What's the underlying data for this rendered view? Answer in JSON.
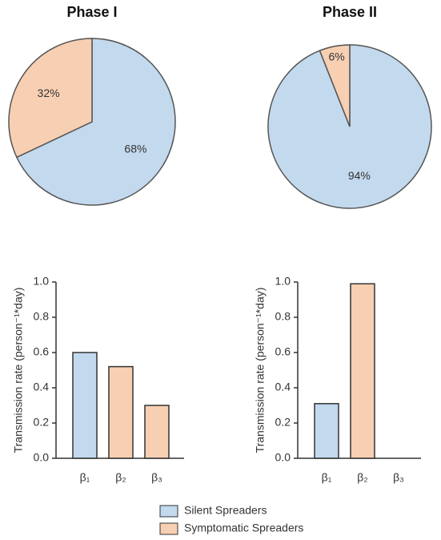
{
  "chart_data": [
    {
      "type": "pie",
      "title": "Phase I",
      "values": [
        68,
        32
      ],
      "value_labels": [
        "68%",
        "32%"
      ],
      "colors": [
        "#c3d9ee",
        "#f7cfb2"
      ]
    },
    {
      "type": "pie",
      "title": "Phase II",
      "values": [
        94,
        6
      ],
      "value_labels": [
        "94%",
        "6%"
      ],
      "colors": [
        "#c3d9ee",
        "#f7cfb2"
      ]
    },
    {
      "type": "bar",
      "ylabel": "Transmission rate (person⁻¹*day)",
      "categories": [
        "β₁",
        "β₂",
        "β₃"
      ],
      "values": [
        0.6,
        0.52,
        0.3
      ],
      "colors": [
        "#c3d9ee",
        "#f7cfb2",
        "#f7cfb2"
      ],
      "ylim": [
        0,
        1
      ],
      "yticks": [
        {
          "value": 0,
          "label": "0.0"
        },
        {
          "value": 0.2,
          "label": "0.2"
        },
        {
          "value": 0.4,
          "label": "0.4"
        },
        {
          "value": 0.6,
          "label": "0.6"
        },
        {
          "value": 0.8,
          "label": "0.8"
        },
        {
          "value": 1,
          "label": "1.0"
        }
      ]
    },
    {
      "type": "bar",
      "ylabel": "Transmission rate (person⁻¹*day)",
      "categories": [
        "β₁",
        "β₂",
        "β₃"
      ],
      "values": [
        0.31,
        0.99,
        0
      ],
      "colors": [
        "#c3d9ee",
        "#f7cfb2",
        "#f7cfb2"
      ],
      "ylim": [
        0,
        1
      ],
      "yticks": [
        {
          "value": 0,
          "label": "0.0"
        },
        {
          "value": 0.2,
          "label": "0.2"
        },
        {
          "value": 0.4,
          "label": "0.4"
        },
        {
          "value": 0.6,
          "label": "0.6"
        },
        {
          "value": 0.8,
          "label": "0.8"
        },
        {
          "value": 1,
          "label": "1.0"
        }
      ]
    }
  ],
  "legend": {
    "items": [
      {
        "name": "Silent Spreaders",
        "color": "#c3d9ee"
      },
      {
        "name": "Symptomatic Spreaders",
        "color": "#f7cfb2"
      }
    ]
  }
}
